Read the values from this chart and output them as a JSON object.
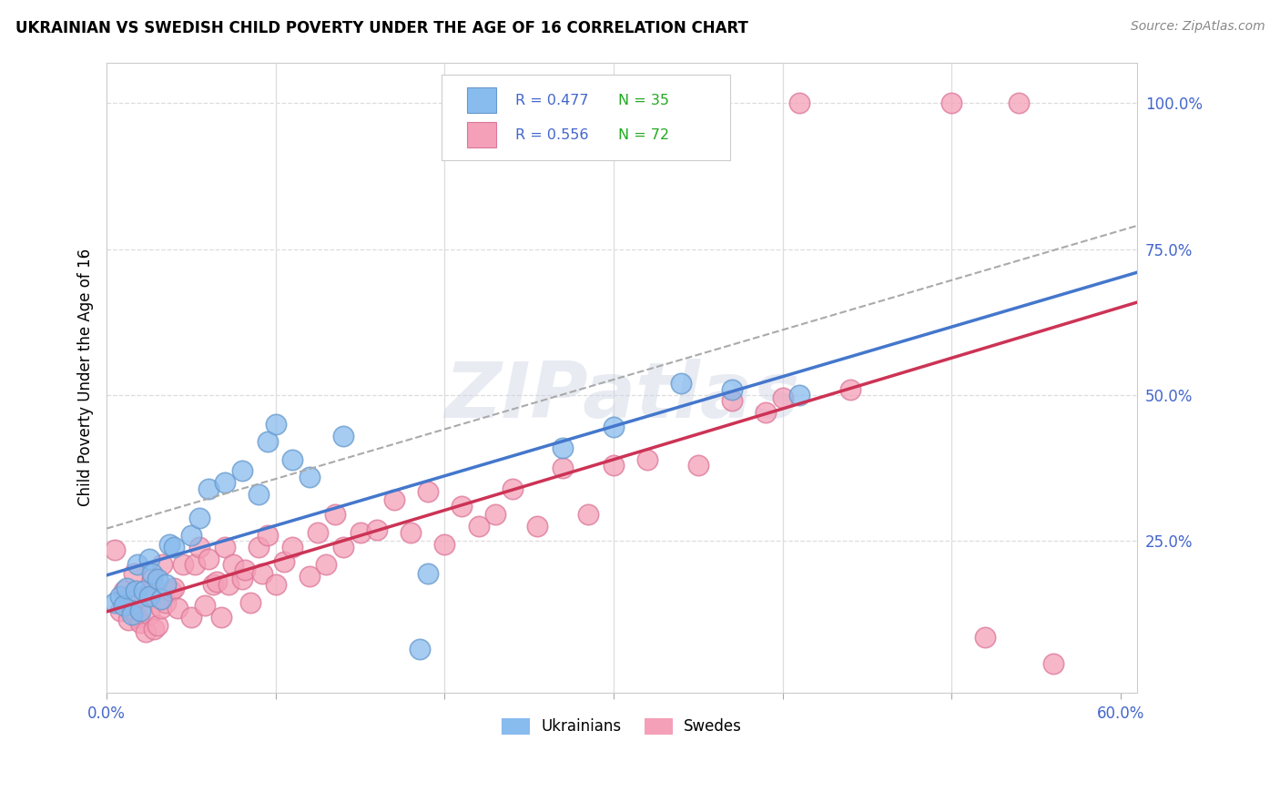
{
  "title": "UKRAINIAN VS SWEDISH CHILD POVERTY UNDER THE AGE OF 16 CORRELATION CHART",
  "source": "Source: ZipAtlas.com",
  "ylabel": "Child Poverty Under the Age of 16",
  "xlim": [
    0.0,
    0.61
  ],
  "ylim": [
    -0.01,
    1.07
  ],
  "color_ukrainian": "#88bbee",
  "color_ukrainian_edge": "#6699cc",
  "color_swedes": "#f4a0b8",
  "color_swedes_edge": "#dd7799",
  "color_ukrainian_line": "#4477cc",
  "color_swedes_line": "#cc3355",
  "color_gray_dashed": "#aaaaaa",
  "color_accent": "#4466cc",
  "color_grid": "#dddddd",
  "watermark": "ZIPatlas",
  "bg_color": "#ffffff",
  "R_ukrainian": "0.477",
  "N_ukrainian": "35",
  "R_swedes": "0.556",
  "N_swedes": "72",
  "ukrainian_x": [
    0.005,
    0.008,
    0.01,
    0.012,
    0.015,
    0.017,
    0.018,
    0.02,
    0.022,
    0.025,
    0.025,
    0.027,
    0.03,
    0.032,
    0.035,
    0.037,
    0.04,
    0.05,
    0.055,
    0.06,
    0.07,
    0.08,
    0.09,
    0.095,
    0.1,
    0.11,
    0.12,
    0.14,
    0.185,
    0.19,
    0.27,
    0.3,
    0.34,
    0.37,
    0.41
  ],
  "ukrainian_y": [
    0.145,
    0.155,
    0.14,
    0.17,
    0.125,
    0.165,
    0.21,
    0.13,
    0.165,
    0.155,
    0.22,
    0.195,
    0.185,
    0.15,
    0.175,
    0.245,
    0.24,
    0.26,
    0.29,
    0.34,
    0.35,
    0.37,
    0.33,
    0.42,
    0.45,
    0.39,
    0.36,
    0.43,
    0.065,
    0.195,
    0.41,
    0.445,
    0.52,
    0.51,
    0.5
  ],
  "swedes_x": [
    0.005,
    0.008,
    0.01,
    0.013,
    0.015,
    0.016,
    0.018,
    0.02,
    0.022,
    0.023,
    0.025,
    0.026,
    0.027,
    0.028,
    0.03,
    0.032,
    0.033,
    0.035,
    0.038,
    0.04,
    0.042,
    0.045,
    0.05,
    0.052,
    0.055,
    0.058,
    0.06,
    0.063,
    0.065,
    0.068,
    0.07,
    0.072,
    0.075,
    0.08,
    0.082,
    0.085,
    0.09,
    0.092,
    0.095,
    0.1,
    0.105,
    0.11,
    0.12,
    0.125,
    0.13,
    0.135,
    0.14,
    0.15,
    0.16,
    0.17,
    0.18,
    0.19,
    0.2,
    0.21,
    0.22,
    0.23,
    0.24,
    0.255,
    0.27,
    0.285,
    0.3,
    0.32,
    0.35,
    0.37,
    0.39,
    0.4,
    0.41,
    0.44,
    0.5,
    0.52,
    0.54,
    0.56
  ],
  "swedes_y": [
    0.235,
    0.13,
    0.165,
    0.115,
    0.13,
    0.195,
    0.12,
    0.11,
    0.155,
    0.095,
    0.125,
    0.165,
    0.185,
    0.1,
    0.105,
    0.135,
    0.21,
    0.145,
    0.165,
    0.17,
    0.135,
    0.21,
    0.12,
    0.21,
    0.24,
    0.14,
    0.22,
    0.175,
    0.18,
    0.12,
    0.24,
    0.175,
    0.21,
    0.185,
    0.2,
    0.145,
    0.24,
    0.195,
    0.26,
    0.175,
    0.215,
    0.24,
    0.19,
    0.265,
    0.21,
    0.295,
    0.24,
    0.265,
    0.27,
    0.32,
    0.265,
    0.335,
    0.245,
    0.31,
    0.275,
    0.295,
    0.34,
    0.275,
    0.375,
    0.295,
    0.38,
    0.39,
    0.38,
    0.49,
    0.47,
    0.495,
    1.0,
    0.51,
    1.0,
    0.085,
    1.0,
    0.04
  ]
}
